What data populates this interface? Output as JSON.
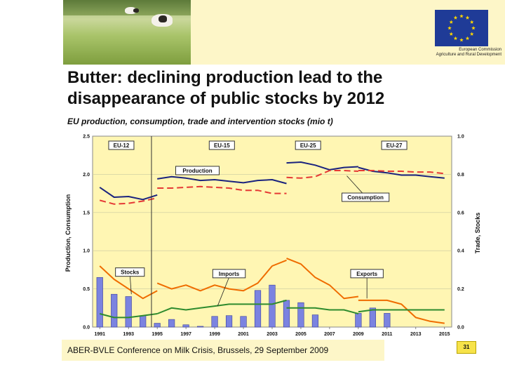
{
  "slide": {
    "title_line1": "Butter: declining production lead to the",
    "title_line2": "disappearance of public stocks by 2012",
    "subtitle": "EU production, consumption, trade and intervention stocks (mio t)",
    "footer": "ABER-BVLE Conference on Milk Crisis, Brussels, 29 September 2009",
    "page_number": "31",
    "eu_caption_line1": "European Commission",
    "eu_caption_line2": "Agriculture and Rural Development",
    "colors": {
      "flag_blue": "#1f3b97",
      "star_yellow": "#ffd700",
      "plot_bg": "#fff6b3",
      "production": "#1a237e",
      "consumption": "#e53935",
      "stocks": "#7b83e0",
      "imports": "#2e8b2e",
      "exports": "#ef6c00"
    }
  },
  "chart_data": {
    "type": "bar",
    "xlabel": "",
    "ylabel_left": "Production, Consumption",
    "ylabel_right": "Trade, Stocks",
    "ylim_left": [
      0,
      2.5
    ],
    "ylim_right": [
      0,
      1.0
    ],
    "left_ticks": [
      "0.0",
      "0.5",
      "1.0",
      "1.5",
      "2.0",
      "2.5"
    ],
    "right_ticks": [
      "0.0",
      "0.2",
      "0.4",
      "0.6",
      "0.8",
      "1.0"
    ],
    "x_ticks": [
      "1991",
      "1993",
      "1995",
      "1997",
      "1999",
      "2001",
      "2003",
      "2005",
      "2007",
      "2009",
      "2011",
      "2013",
      "2015"
    ],
    "grid": true,
    "period_labels": [
      {
        "text": "EU-12",
        "x": 1992.5
      },
      {
        "text": "EU-15",
        "x": 1999.5
      },
      {
        "text": "EU-25",
        "x": 2005.5
      },
      {
        "text": "EU-27",
        "x": 2011.5
      }
    ],
    "period_dividers": [
      1994.6
    ],
    "series_labels": {
      "production": "Production",
      "consumption": "Consumption",
      "stocks": "Stocks",
      "imports": "Imports",
      "exports": "Exports"
    },
    "series": [
      {
        "name": "Production",
        "key": "production",
        "axis": "left",
        "style": "solid",
        "segments": [
          {
            "x": [
              1991,
              1992,
              1993,
              1994,
              1995
            ],
            "y": [
              1.83,
              1.7,
              1.71,
              1.67,
              1.73
            ]
          },
          {
            "x": [
              1995,
              1996,
              1997,
              1998,
              1999,
              2000,
              2001,
              2002,
              2003,
              2004
            ],
            "y": [
              1.94,
              1.97,
              1.95,
              1.92,
              1.93,
              1.91,
              1.89,
              1.92,
              1.93,
              1.88
            ]
          },
          {
            "x": [
              2004,
              2005,
              2006,
              2007,
              2008,
              2009
            ],
            "y": [
              2.15,
              2.16,
              2.12,
              2.06,
              2.09,
              2.1
            ]
          },
          {
            "x": [
              2009,
              2010,
              2011,
              2012,
              2013,
              2014,
              2015
            ],
            "y": [
              2.09,
              2.04,
              2.02,
              1.99,
              1.99,
              1.97,
              1.95
            ]
          }
        ]
      },
      {
        "name": "Consumption",
        "key": "consumption",
        "axis": "left",
        "style": "dashed",
        "segments": [
          {
            "x": [
              1991,
              1992,
              1993,
              1994,
              1995
            ],
            "y": [
              1.66,
              1.61,
              1.62,
              1.65,
              1.69
            ]
          },
          {
            "x": [
              1995,
              1996,
              1997,
              1998,
              1999,
              2000,
              2001,
              2002,
              2003,
              2004
            ],
            "y": [
              1.82,
              1.82,
              1.83,
              1.84,
              1.83,
              1.82,
              1.79,
              1.79,
              1.75,
              1.75
            ]
          },
          {
            "x": [
              2004,
              2005,
              2006,
              2007,
              2008,
              2009
            ],
            "y": [
              1.96,
              1.95,
              1.97,
              2.05,
              2.05,
              2.04
            ]
          },
          {
            "x": [
              2009,
              2010,
              2011,
              2012,
              2013,
              2014,
              2015
            ],
            "y": [
              2.05,
              2.05,
              2.04,
              2.04,
              2.03,
              2.03,
              2.01
            ]
          }
        ]
      },
      {
        "name": "Exports",
        "key": "exports",
        "axis": "right",
        "style": "solid",
        "segments": [
          {
            "x": [
              1991,
              1992,
              1993,
              1994,
              1995
            ],
            "y": [
              0.32,
              0.25,
              0.2,
              0.15,
              0.19
            ]
          },
          {
            "x": [
              1995,
              1996,
              1997,
              1998,
              1999,
              2000,
              2001,
              2002,
              2003,
              2004
            ],
            "y": [
              0.23,
              0.2,
              0.22,
              0.19,
              0.22,
              0.2,
              0.19,
              0.23,
              0.32,
              0.35
            ]
          },
          {
            "x": [
              2004,
              2005,
              2006,
              2007,
              2008,
              2009
            ],
            "y": [
              0.36,
              0.33,
              0.26,
              0.22,
              0.15,
              0.16
            ]
          },
          {
            "x": [
              2009,
              2010,
              2011,
              2012,
              2013,
              2014,
              2015
            ],
            "y": [
              0.14,
              0.14,
              0.14,
              0.12,
              0.05,
              0.03,
              0.02
            ]
          }
        ]
      },
      {
        "name": "Imports",
        "key": "imports",
        "axis": "right",
        "style": "solid",
        "segments": [
          {
            "x": [
              1991,
              1992,
              1993,
              1994,
              1995
            ],
            "y": [
              0.07,
              0.05,
              0.05,
              0.06,
              0.07
            ]
          },
          {
            "x": [
              1995,
              1996,
              1997,
              1998,
              1999,
              2000,
              2001,
              2002,
              2003,
              2004
            ],
            "y": [
              0.07,
              0.1,
              0.09,
              0.1,
              0.11,
              0.12,
              0.12,
              0.12,
              0.12,
              0.14
            ]
          },
          {
            "x": [
              2004,
              2005,
              2006,
              2007,
              2008,
              2009
            ],
            "y": [
              0.1,
              0.1,
              0.1,
              0.09,
              0.09,
              0.07
            ]
          },
          {
            "x": [
              2009,
              2010,
              2011,
              2012,
              2013,
              2014,
              2015
            ],
            "y": [
              0.08,
              0.09,
              0.09,
              0.09,
              0.09,
              0.09,
              0.09
            ]
          }
        ]
      },
      {
        "name": "Stocks",
        "key": "stocks",
        "axis": "left",
        "style": "bar",
        "x": [
          1991,
          1992,
          1993,
          1994,
          1995,
          1996,
          1997,
          1998,
          1999,
          2000,
          2001,
          2002,
          2003,
          2004,
          2005,
          2006,
          2007,
          2008,
          2009,
          2010,
          2011,
          2012,
          2013,
          2014,
          2015
        ],
        "values": [
          0.65,
          0.43,
          0.4,
          0.15,
          0.05,
          0.1,
          0.03,
          0.01,
          0.14,
          0.15,
          0.14,
          0.48,
          0.55,
          0.35,
          0.32,
          0.16,
          0.0,
          0.0,
          0.18,
          0.25,
          0.18,
          0.0,
          0.0,
          0.0,
          0.0
        ]
      }
    ]
  }
}
